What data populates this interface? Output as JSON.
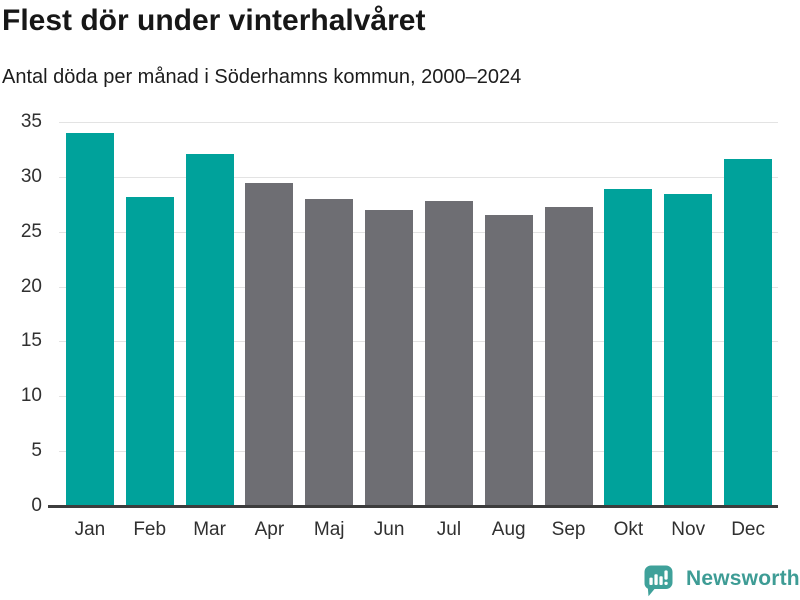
{
  "header": {
    "title": "Flest dör under vinterhalvåret",
    "subtitle": "Antal döda per månad i Söderhamns kommun, 2000–2024"
  },
  "chart_data": {
    "type": "bar",
    "title": "Flest dör under vinterhalvåret",
    "subtitle": "Antal döda per månad i Söderhamns kommun, 2000–2024",
    "categories": [
      "Jan",
      "Feb",
      "Mar",
      "Apr",
      "Maj",
      "Jun",
      "Jul",
      "Aug",
      "Sep",
      "Okt",
      "Nov",
      "Dec"
    ],
    "values": [
      34.0,
      28.2,
      32.1,
      29.4,
      28.0,
      27.0,
      27.8,
      26.5,
      27.3,
      28.9,
      28.4,
      31.6
    ],
    "bar_color_keys": [
      "teal",
      "teal",
      "teal",
      "gray",
      "gray",
      "gray",
      "gray",
      "gray",
      "gray",
      "teal",
      "teal",
      "teal"
    ],
    "colors": {
      "teal": "#00a29b",
      "gray": "#6e6e73"
    },
    "xlabel": "",
    "ylabel": "",
    "ylim": [
      0,
      35
    ],
    "yticks": [
      0,
      5,
      10,
      15,
      20,
      25,
      30,
      35
    ],
    "grid": true,
    "legend": false,
    "gridline_color": "#e3e3e3",
    "axis_line_color": "#3d3d3d"
  },
  "footer": {
    "brand": "Newsworthy",
    "brand_color": "#3e9c95"
  }
}
